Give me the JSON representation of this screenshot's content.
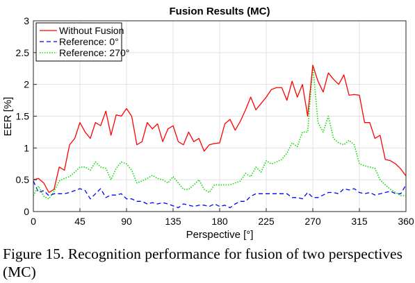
{
  "caption": "Figure 15. Recognition performance for fusion of two perspectives (MC)",
  "chart_data": {
    "type": "line",
    "title": "Fusion Results (MC)",
    "xlabel": "Perspective [°]",
    "ylabel": "EER [%]",
    "xlim": [
      0,
      360
    ],
    "ylim": [
      0,
      3
    ],
    "xticks": [
      0,
      45,
      90,
      135,
      180,
      225,
      270,
      315,
      360
    ],
    "yticks": [
      0,
      0.5,
      1,
      1.5,
      2,
      2.5,
      3
    ],
    "xtick_labels": [
      "0",
      "45",
      "90",
      "135",
      "180",
      "225",
      "270",
      "315",
      "360"
    ],
    "ytick_labels": [
      "0",
      "0.5",
      "1",
      "1.5",
      "2",
      "2.5",
      "3"
    ],
    "grid": true,
    "legend_position": "top-left",
    "x": [
      0,
      5,
      10,
      15,
      20,
      25,
      30,
      35,
      40,
      45,
      50,
      55,
      60,
      65,
      70,
      75,
      80,
      85,
      90,
      95,
      100,
      105,
      110,
      115,
      120,
      125,
      130,
      135,
      140,
      145,
      150,
      155,
      160,
      165,
      170,
      175,
      180,
      185,
      190,
      195,
      200,
      205,
      210,
      215,
      220,
      225,
      230,
      235,
      240,
      245,
      250,
      255,
      260,
      265,
      270,
      275,
      280,
      285,
      290,
      295,
      300,
      305,
      310,
      315,
      320,
      325,
      330,
      335,
      340,
      345,
      350,
      355,
      360
    ],
    "series": [
      {
        "name": "Without Fusion",
        "color": "#ff0000",
        "style": "solid",
        "values": [
          0.5,
          0.52,
          0.45,
          0.3,
          0.35,
          0.7,
          0.65,
          1.05,
          1.15,
          1.4,
          1.25,
          1.15,
          1.4,
          1.35,
          1.58,
          1.2,
          1.52,
          1.5,
          1.62,
          1.5,
          1.05,
          1.1,
          1.4,
          1.3,
          1.38,
          1.1,
          1.3,
          1.35,
          1.1,
          1.05,
          1.25,
          1.1,
          1.15,
          0.95,
          1.05,
          1.07,
          1.08,
          1.38,
          1.45,
          1.28,
          1.42,
          1.6,
          1.8,
          1.6,
          1.7,
          1.8,
          1.92,
          1.95,
          1.95,
          1.75,
          2.05,
          1.8,
          2.0,
          1.5,
          2.3,
          2.05,
          1.88,
          2.18,
          2.08,
          2.0,
          2.15,
          1.83,
          1.84,
          1.83,
          1.4,
          1.4,
          1.15,
          1.2,
          0.82,
          0.8,
          0.75,
          0.67,
          0.56
        ]
      },
      {
        "name": "Reference: 0°",
        "color": "#0000ff",
        "style": "dashed",
        "values": [
          0.48,
          0.3,
          0.33,
          0.25,
          0.28,
          0.28,
          0.28,
          0.3,
          0.33,
          0.36,
          0.33,
          0.2,
          0.28,
          0.36,
          0.22,
          0.26,
          0.26,
          0.28,
          0.2,
          0.2,
          0.16,
          0.16,
          0.12,
          0.14,
          0.12,
          0.14,
          0.12,
          0.09,
          0.06,
          0.12,
          0.1,
          0.08,
          0.1,
          0.1,
          0.08,
          0.12,
          0.08,
          0.1,
          0.06,
          0.12,
          0.16,
          0.16,
          0.24,
          0.28,
          0.28,
          0.28,
          0.28,
          0.28,
          0.28,
          0.28,
          0.22,
          0.22,
          0.2,
          0.3,
          0.22,
          0.22,
          0.26,
          0.3,
          0.3,
          0.28,
          0.36,
          0.34,
          0.36,
          0.3,
          0.28,
          0.3,
          0.26,
          0.28,
          0.3,
          0.32,
          0.28,
          0.28,
          0.42
        ]
      },
      {
        "name": "Reference: 270°",
        "color": "#00dd00",
        "style": "dotted",
        "values": [
          0.25,
          0.4,
          0.24,
          0.2,
          0.32,
          0.48,
          0.52,
          0.55,
          0.62,
          0.7,
          0.7,
          0.65,
          0.78,
          0.7,
          0.68,
          0.5,
          0.68,
          0.78,
          0.75,
          0.65,
          0.45,
          0.48,
          0.52,
          0.57,
          0.52,
          0.5,
          0.45,
          0.55,
          0.45,
          0.35,
          0.35,
          0.42,
          0.5,
          0.35,
          0.3,
          0.42,
          0.42,
          0.42,
          0.42,
          0.45,
          0.48,
          0.6,
          0.55,
          0.7,
          0.62,
          0.8,
          0.75,
          0.78,
          0.82,
          0.92,
          1.08,
          1.02,
          1.25,
          1.25,
          2.3,
          1.4,
          1.25,
          1.5,
          1.15,
          1.08,
          1.05,
          1.12,
          1.05,
          0.75,
          0.72,
          0.7,
          0.68,
          0.5,
          0.42,
          0.35,
          0.3,
          0.25,
          0.25
        ]
      }
    ]
  }
}
